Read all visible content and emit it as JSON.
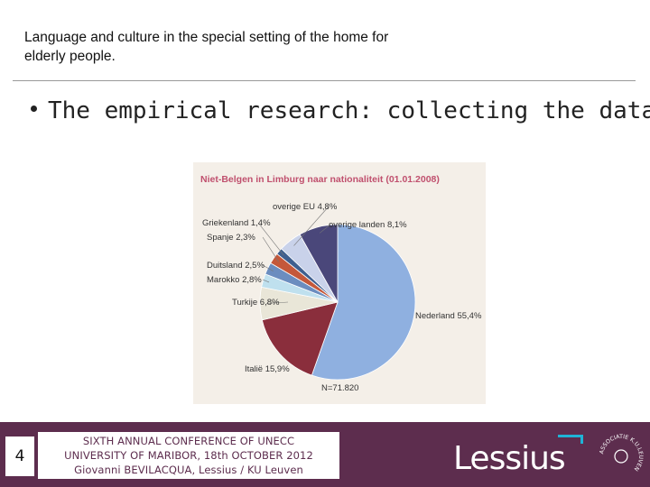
{
  "header": {
    "title_line1": "Language and culture in the special setting of the home for",
    "title_line2": "elderly people."
  },
  "bullet": {
    "text": "The empirical research: collecting the data"
  },
  "figure": {
    "chart_data": {
      "type": "pie",
      "title": "Niet-Belgen in Limburg naar nationaliteit (01.01.2008)",
      "total_label": "N=71.820",
      "slices": [
        {
          "label": "Nederland 55,4%",
          "value": 55.4,
          "color": "#8fb0e0"
        },
        {
          "label": "Italië 15,9%",
          "value": 15.9,
          "color": "#8a2e3c"
        },
        {
          "label": "Turkije 6,8%",
          "value": 6.8,
          "color": "#e9e6d8"
        },
        {
          "label": "Marokko 2,8%",
          "value": 2.8,
          "color": "#bfe0ee"
        },
        {
          "label": "Duitsland 2,5%",
          "value": 2.5,
          "color": "#6b8dbf"
        },
        {
          "label": "Spanje 2,3%",
          "value": 2.3,
          "color": "#c4583a"
        },
        {
          "label": "Griekenland 1,4%",
          "value": 1.4,
          "color": "#3f5f8f"
        },
        {
          "label": "overige EU 4,8%",
          "value": 4.8,
          "color": "#c9d2ea"
        },
        {
          "label": "overige landen 8,1%",
          "value": 8.1,
          "color": "#4a477a"
        }
      ]
    }
  },
  "footer": {
    "page_number": "4",
    "conference_line1": "SIXTH ANNUAL CONFERENCE OF UNECC",
    "conference_line2": "UNIVERSITY OF MARIBOR, 18th OCTOBER 2012",
    "conference_line3": "Giovanni BEVILACQUA, Lessius / KU Leuven",
    "brand_name": "Lessius",
    "seal_text": "ASSOCIATIE K.U.LEUVEN"
  }
}
